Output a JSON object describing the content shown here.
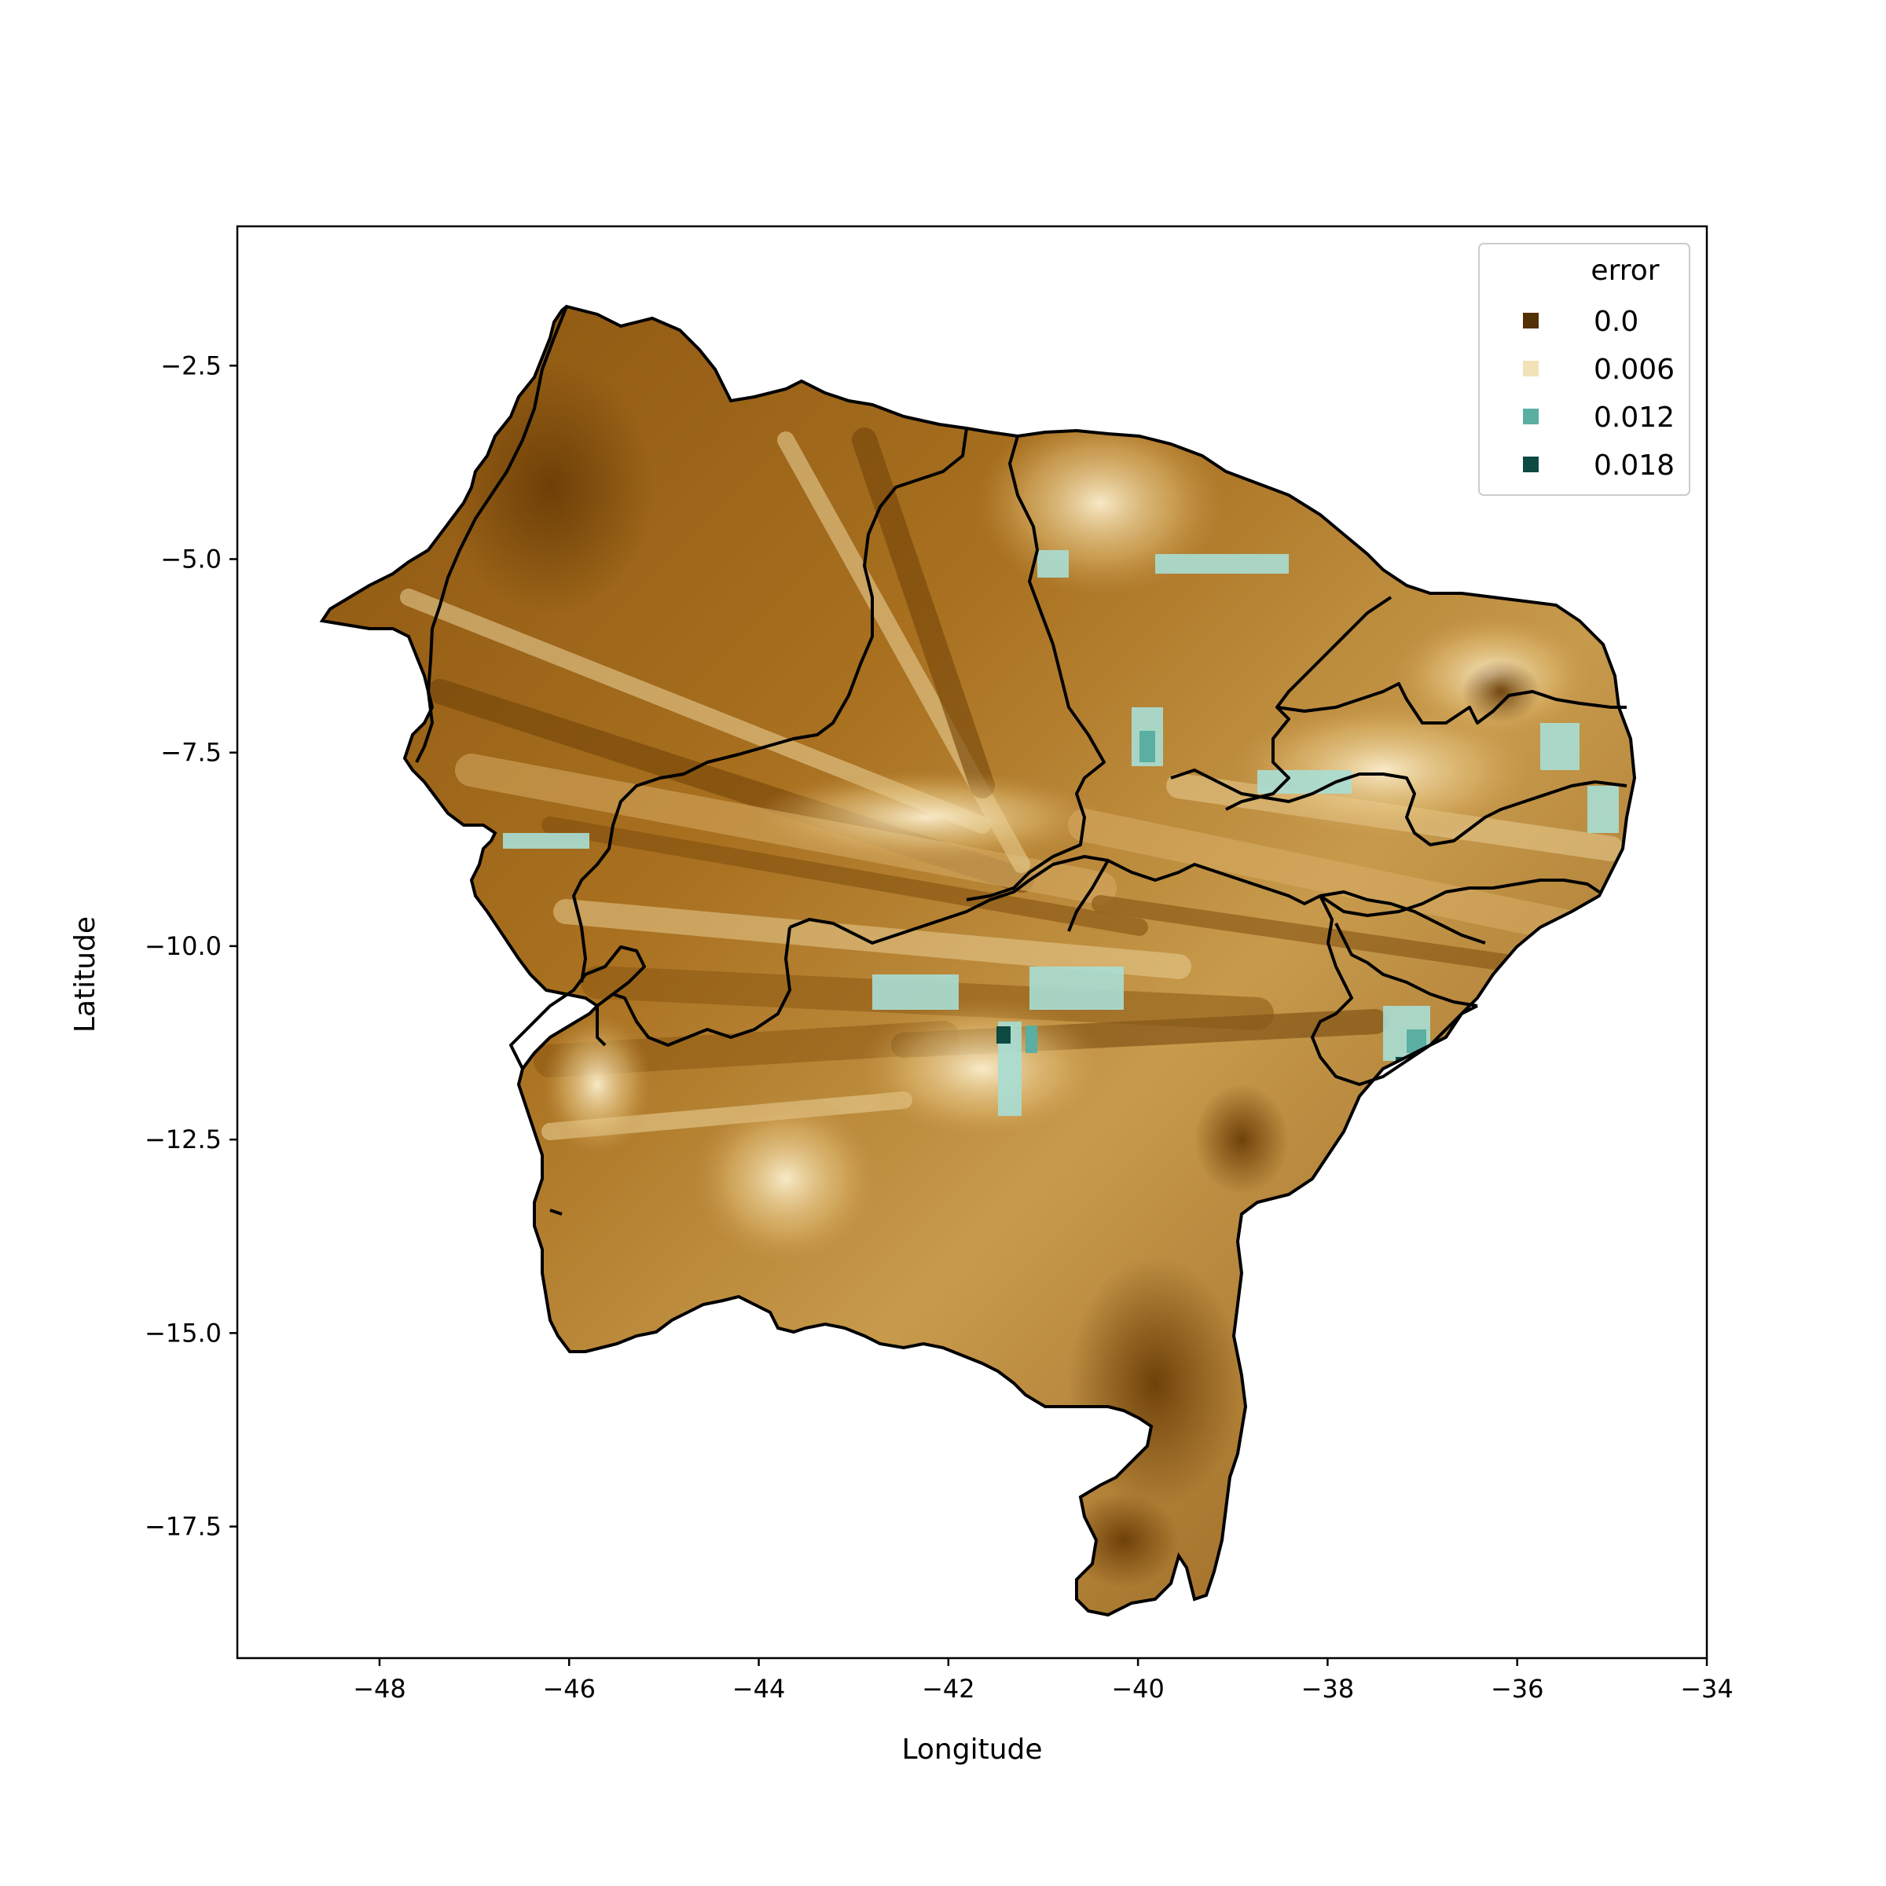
{
  "chart_data": {
    "type": "heatmap",
    "title": "",
    "xlabel": "Longitude",
    "ylabel": "Latitude",
    "xlim": [
      -49.5,
      -34
    ],
    "ylim": [
      -19.2,
      -0.7
    ],
    "xticks": [
      -48,
      -46,
      -44,
      -42,
      -40,
      -38,
      -36,
      -34
    ],
    "yticks": [
      -2.5,
      -5.0,
      -7.5,
      -10.0,
      -12.5,
      -15.0,
      -17.5
    ],
    "xtick_labels": [
      "−48",
      "−46",
      "−44",
      "−42",
      "−40",
      "−38",
      "−36",
      "−34"
    ],
    "ytick_labels": [
      "−2.5",
      "−5.0",
      "−7.5",
      "−10.0",
      "−12.5",
      "−15.0",
      "−17.5"
    ],
    "colormap": "BrBG",
    "value_range": [
      0.0,
      0.018
    ],
    "legend": {
      "title": "error",
      "placement": "upper right",
      "entries": [
        {
          "label": "0.0",
          "value": 0.0,
          "color": "#543005"
        },
        {
          "label": "0.006",
          "value": 0.006,
          "color": "#f2e2b8"
        },
        {
          "label": "0.012",
          "value": 0.012,
          "color": "#5aaea2"
        },
        {
          "label": "0.018",
          "value": 0.018,
          "color": "#0d4a41"
        }
      ]
    },
    "grid": false,
    "region": "Northeast Brazil (state borders overlaid)"
  },
  "colors": {
    "dark": "#7a4a0c",
    "mid": "#b98a3e",
    "light": "#e8cd8f",
    "cream": "#f6e9c8",
    "teal": "#8fd3c8"
  }
}
